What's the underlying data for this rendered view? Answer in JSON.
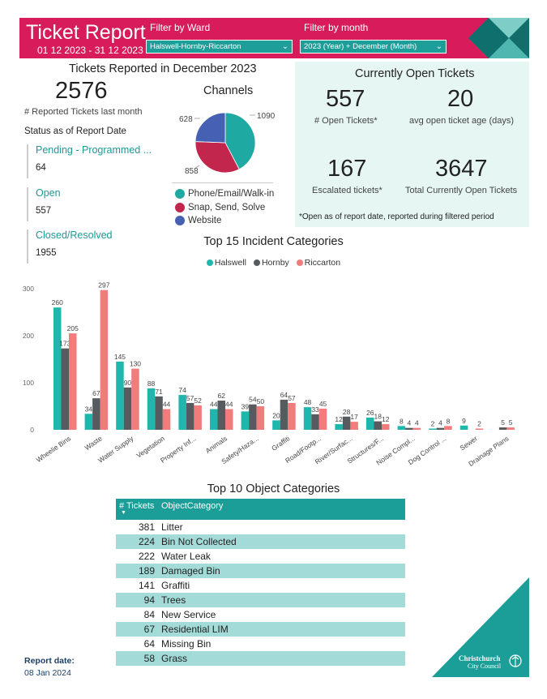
{
  "header": {
    "title": "Ticket Report",
    "date_range": "01 12 2023 - 31 12 2023",
    "ward_filter": {
      "label": "Filter by Ward",
      "value": "Halswell-Hornby-Riccarton"
    },
    "month_filter": {
      "label": "Filter by month",
      "value": "2023 (Year) + December (Month)"
    },
    "colors": {
      "brand": "#d81b5a",
      "teal": "#1e9e99"
    }
  },
  "summary": {
    "title": "Tickets Reported in December 2023",
    "total": "2576",
    "total_caption": "# Reported Tickets last month",
    "status_title": "Status as of Report Date",
    "statuses": [
      {
        "label": "Pending - Programmed ...",
        "value": "64"
      },
      {
        "label": "Open",
        "value": "557"
      },
      {
        "label": "Closed/Resolved",
        "value": "1955"
      }
    ]
  },
  "channels": {
    "title": "Channels",
    "slices": [
      {
        "name": "Phone/Email/Walk-in",
        "value": 1090,
        "color": "#1ea9a3"
      },
      {
        "name": "Snap, Send, Solve",
        "value": 858,
        "color": "#c3264d"
      },
      {
        "name": "Website",
        "value": 628,
        "color": "#4660b4"
      }
    ],
    "labels": {
      "a": "1090",
      "b": "858",
      "c": "628"
    }
  },
  "open_tickets": {
    "title": "Currently Open Tickets",
    "open": "557",
    "open_caption": "# Open Tickets*",
    "avg_age": "20",
    "avg_age_caption": "avg open ticket age (days)",
    "escalated": "167",
    "escalated_caption": "Escalated tickets*",
    "total_open": "3647",
    "total_open_caption": "Total Currently Open Tickets",
    "footnote": "*Open as of report date, reported during filtered period"
  },
  "chart_data": {
    "type": "bar",
    "title": "Top 15 Incident Categories",
    "categories": [
      "Wheelie Bins",
      "Waste",
      "Water Supply",
      "Vegetation",
      "Property Inf...",
      "Animals",
      "Safety/Haza...",
      "Graffiti",
      "Road/Footp...",
      "River/Surfac...",
      "Structures/F...",
      "Noise Compl...",
      "Dog Control ...",
      "Sewer",
      "Drainage Plans"
    ],
    "series": [
      {
        "name": "Halswell",
        "color": "#1fb7ad",
        "values": [
          260,
          34,
          145,
          88,
          74,
          44,
          39,
          20,
          48,
          12,
          26,
          8,
          2,
          9,
          null
        ]
      },
      {
        "name": "Hornby",
        "color": "#555b5e",
        "values": [
          173,
          67,
          90,
          71,
          57,
          62,
          54,
          64,
          33,
          28,
          18,
          4,
          4,
          null,
          5
        ]
      },
      {
        "name": "Riccarton",
        "color": "#f27c7b",
        "values": [
          205,
          297,
          130,
          44,
          52,
          44,
          50,
          57,
          45,
          17,
          12,
          4,
          8,
          2,
          5
        ]
      }
    ],
    "yticks": [
      "0",
      "100",
      "200",
      "300"
    ],
    "ylim": [
      0,
      300
    ]
  },
  "table": {
    "title": "Top 10 Object Categories",
    "col1": "# Tickets",
    "col2": "ObjectCategory",
    "rows": [
      {
        "n": "381",
        "cat": "Litter"
      },
      {
        "n": "224",
        "cat": "Bin Not Collected"
      },
      {
        "n": "222",
        "cat": "Water Leak"
      },
      {
        "n": "189",
        "cat": "Damaged Bin"
      },
      {
        "n": "141",
        "cat": "Graffiti"
      },
      {
        "n": "94",
        "cat": "Trees"
      },
      {
        "n": "84",
        "cat": "New Service"
      },
      {
        "n": "67",
        "cat": "Residential LIM"
      },
      {
        "n": "64",
        "cat": "Missing Bin"
      },
      {
        "n": "58",
        "cat": "Grass"
      }
    ]
  },
  "footer": {
    "report_date_label": "Report date:",
    "report_date": "08 Jan 2024",
    "logo_text_1": "Christchurch",
    "logo_text_2": "City Council"
  }
}
